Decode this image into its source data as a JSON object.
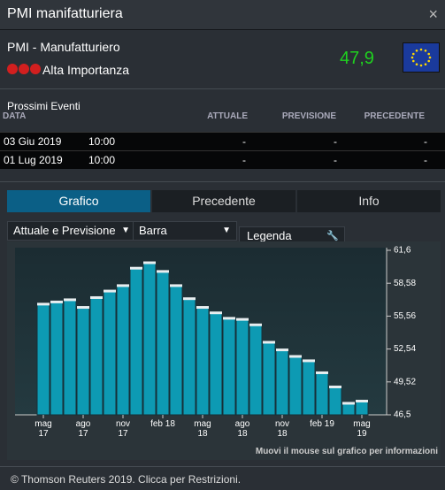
{
  "header": {
    "title": "PMI manifatturiera",
    "close": "×"
  },
  "event": {
    "name": "PMI - Manufatturiero",
    "importance": "Alta Importanza",
    "value": "47,9"
  },
  "upcoming": {
    "title": "Prossimi Eventi",
    "columns": [
      "DATA",
      "ATTUALE",
      "PREVISIONE",
      "PRECEDENTE"
    ],
    "rows": [
      [
        "03 Giu 2019",
        "10:00",
        "-",
        "-",
        "-"
      ],
      [
        "01 Lug 2019",
        "10:00",
        "-",
        "-",
        "-"
      ]
    ]
  },
  "tabs": [
    "Grafico",
    "Precedente",
    "Info"
  ],
  "controls": {
    "series_select": "Attuale e Previsione",
    "type_select": "Barra",
    "legend": "Legenda"
  },
  "chart_data": {
    "type": "bar",
    "categories": [
      "mag 17",
      null,
      null,
      "ago 17",
      null,
      null,
      "nov 17",
      null,
      null,
      "feb 18",
      null,
      null,
      "mag 18",
      null,
      null,
      "ago 18",
      null,
      null,
      "nov 18",
      null,
      null,
      "feb 19",
      null,
      null,
      "mag 19"
    ],
    "values": [
      56.7,
      56.9,
      57.1,
      56.4,
      57.3,
      57.9,
      58.4,
      60.0,
      60.5,
      59.7,
      58.4,
      57.2,
      56.4,
      55.9,
      55.4,
      55.3,
      54.8,
      53.2,
      52.5,
      51.9,
      51.5,
      50.4,
      49.1,
      47.6,
      47.8
    ],
    "color": "#0d9ab3",
    "ylim": [
      46.5,
      61.6
    ],
    "yticks": [
      {
        "value": 46.5,
        "label": "46,5"
      },
      {
        "value": 49.52,
        "label": "49,52"
      },
      {
        "value": 52.54,
        "label": "52,54"
      },
      {
        "value": 55.56,
        "label": "55,56"
      },
      {
        "value": 58.58,
        "label": "58,58"
      },
      {
        "value": 61.6,
        "label": "61,6"
      }
    ]
  },
  "hint": "Muovi il mouse sul grafico per informazioni",
  "footer": "© Thomson Reuters 2019. Clicca per Restrizioni."
}
